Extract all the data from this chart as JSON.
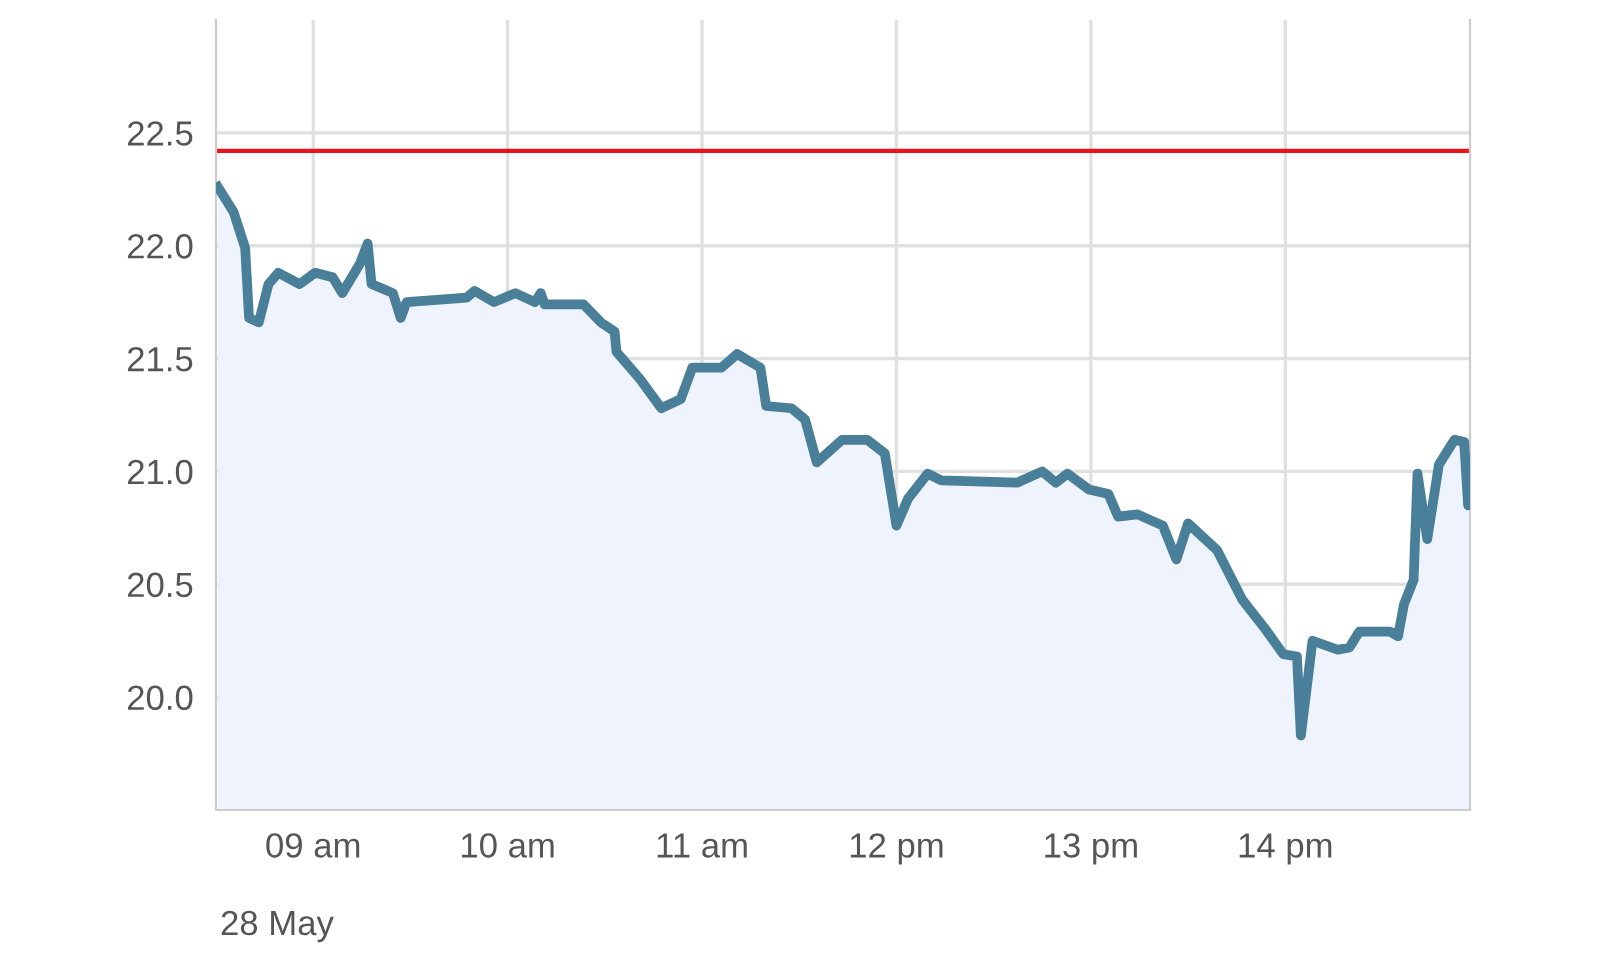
{
  "chart_data": {
    "type": "area",
    "x": [
      8.51,
      8.59,
      8.65,
      8.67,
      8.72,
      8.77,
      8.82,
      8.93,
      9.01,
      9.1,
      9.15,
      9.24,
      9.28,
      9.3,
      9.41,
      9.45,
      9.48,
      9.79,
      9.83,
      9.93,
      10.04,
      10.14,
      10.17,
      10.19,
      10.39,
      10.48,
      10.55,
      10.56,
      10.68,
      10.79,
      10.89,
      10.95,
      11.1,
      11.18,
      11.3,
      11.33,
      11.46,
      11.53,
      11.59,
      11.72,
      11.85,
      11.94,
      12.0,
      12.06,
      12.16,
      12.23,
      12.62,
      12.75,
      12.82,
      12.88,
      12.99,
      13.09,
      13.14,
      13.24,
      13.37,
      13.44,
      13.5,
      13.65,
      13.78,
      13.89,
      13.99,
      14.06,
      14.08,
      14.11,
      14.14,
      14.27,
      14.33,
      14.38,
      14.54,
      14.58,
      14.61,
      14.66,
      14.68,
      14.73,
      14.79,
      14.87,
      14.92,
      14.94,
      14.95
    ],
    "series": [
      {
        "color": "#4a7f99",
        "values": [
          22.26,
          22.15,
          21.99,
          21.68,
          21.66,
          21.83,
          21.88,
          21.83,
          21.88,
          21.86,
          21.79,
          21.92,
          22.01,
          21.83,
          21.79,
          21.68,
          21.75,
          21.77,
          21.8,
          21.75,
          21.79,
          21.75,
          21.79,
          21.74,
          21.74,
          21.66,
          21.62,
          21.53,
          21.41,
          21.28,
          21.32,
          21.46,
          21.46,
          21.52,
          21.46,
          21.29,
          21.28,
          21.23,
          21.04,
          21.14,
          21.14,
          21.08,
          20.76,
          20.88,
          20.99,
          20.96,
          20.95,
          21.0,
          20.95,
          20.99,
          20.92,
          20.9,
          20.8,
          20.81,
          20.76,
          20.61,
          20.77,
          20.65,
          20.43,
          20.31,
          20.19,
          20.18,
          19.83,
          20.04,
          20.25,
          20.21,
          20.22,
          20.29,
          20.29,
          20.27,
          20.41,
          20.52,
          20.99,
          20.7,
          21.03,
          21.14,
          21.13,
          20.85,
          20.9
        ]
      }
    ],
    "xlim": [
      8.5,
      14.95
    ],
    "xticks": [
      {
        "value": 9,
        "label": "09 am"
      },
      {
        "value": 10,
        "label": "10 am"
      },
      {
        "value": 11,
        "label": "11 am"
      },
      {
        "value": 12,
        "label": "12 pm"
      },
      {
        "value": 13,
        "label": "13 pm"
      },
      {
        "value": 14,
        "label": "14 pm"
      }
    ],
    "ylim": [
      19.5,
      23.0
    ],
    "yticks": [
      {
        "value": 20,
        "label": "20.0"
      },
      {
        "value": 20.5,
        "label": "20.5"
      },
      {
        "value": 21,
        "label": "21.0"
      },
      {
        "value": 21.5,
        "label": "21.5"
      },
      {
        "value": 22,
        "label": "22.0"
      },
      {
        "value": 22.5,
        "label": "22.5"
      }
    ],
    "ref_lines": [
      {
        "axis": "y",
        "value": 22.42,
        "color": "#e8141c"
      }
    ],
    "grid": true,
    "legend": false,
    "annotations": [
      "28 May"
    ]
  }
}
